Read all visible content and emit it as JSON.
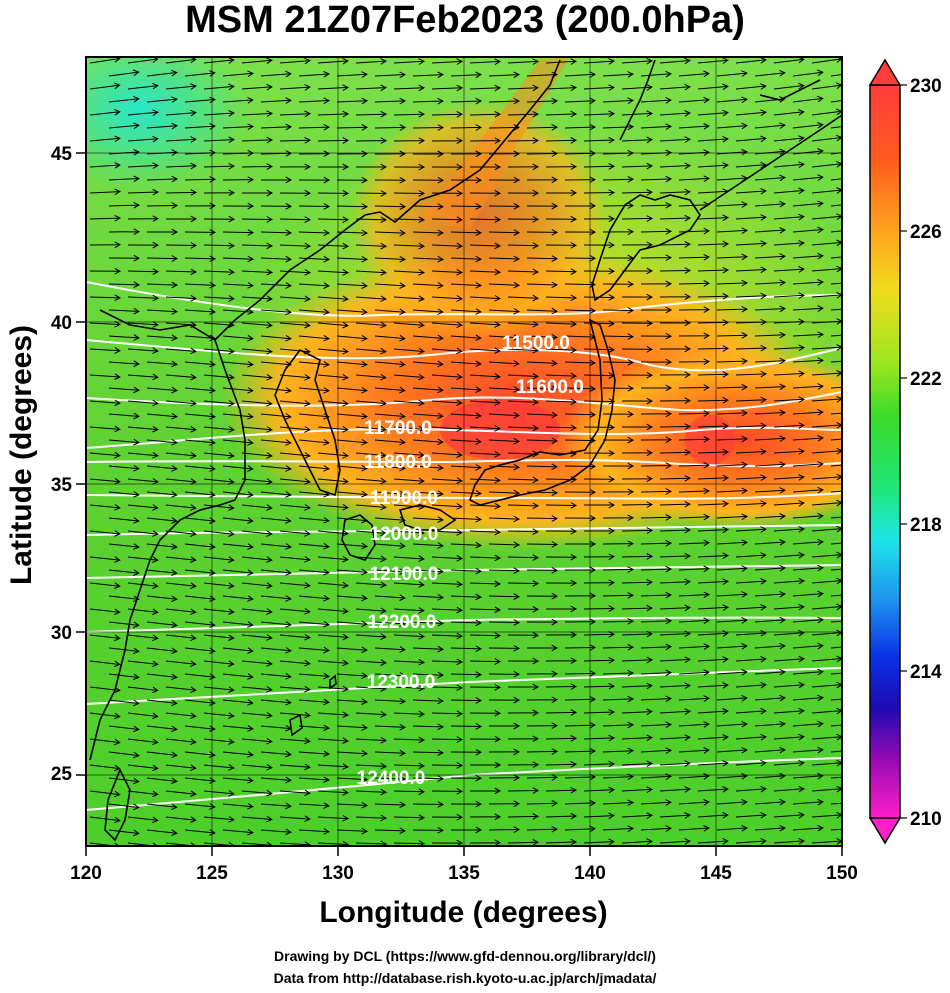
{
  "title": "MSM 21Z07Feb2023 (200.0hPa)",
  "xlabel": "Longitude (degrees)",
  "ylabel": "Latitude  (degrees)",
  "credit_line1": "Drawing by DCL (https://www.gfd-dennou.org/library/dcl/)",
  "credit_line2": "Data from http://database.rish.kyoto-u.ac.jp/arch/jmadata/",
  "map": {
    "lon_range": [
      120,
      150
    ],
    "lat_range": [
      22.4,
      47.6
    ],
    "lon_ticks": [
      "120",
      "125",
      "130",
      "135",
      "140",
      "145",
      "150"
    ],
    "lat_ticks": [
      "25",
      "30",
      "35",
      "40",
      "45"
    ],
    "fill_variable_range": [
      210,
      230
    ],
    "colorbar_labels": [
      "230",
      "226",
      "222",
      "218",
      "214",
      "210"
    ],
    "contour_labels": [
      "11500.0",
      "11600.0",
      "11700.0",
      "11800.0",
      "11900.0",
      "12000.0",
      "12100.0",
      "12200.0",
      "12300.0",
      "12400.0"
    ],
    "colors": {
      "max_red": "#ff3030",
      "orange": "#ff8a1e",
      "yellow": "#e6e61e",
      "green": "#28dc28",
      "cyan": "#1ee6e6",
      "blue": "#0a2ad2",
      "magenta": "#ff1ec8",
      "contour": "#ffffff",
      "coastline": "#000000",
      "wind_vector": "#000000"
    }
  }
}
